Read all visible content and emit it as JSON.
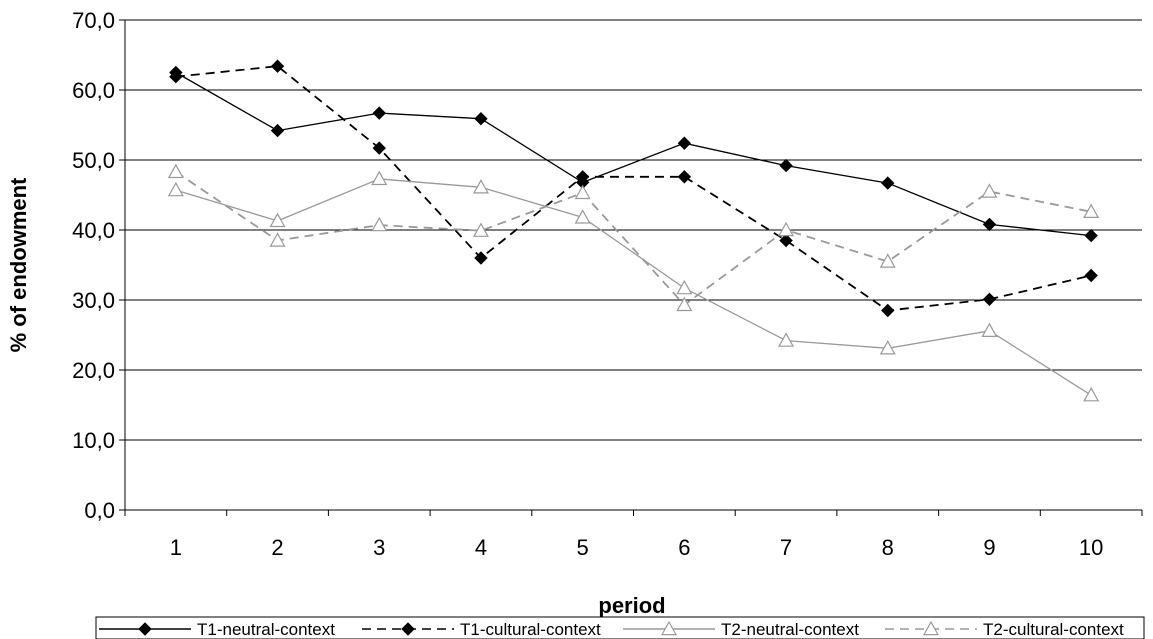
{
  "chart_data": {
    "type": "line",
    "xlabel": "period",
    "ylabel": "% of endowment",
    "ylim": [
      0,
      70
    ],
    "y_ticks": [
      "0,0",
      "10,0",
      "20,0",
      "30,0",
      "40,0",
      "50,0",
      "60,0",
      "70,0"
    ],
    "categories": [
      "1",
      "2",
      "3",
      "4",
      "5",
      "6",
      "7",
      "8",
      "9",
      "10"
    ],
    "grid": "horizontal",
    "legend_position": "bottom",
    "series": [
      {
        "name": "T1-neutral-context",
        "color": "#000000",
        "dash": "solid",
        "marker": "diamond-filled",
        "values": [
          62.5,
          54.2,
          56.7,
          55.9,
          46.8,
          52.4,
          49.2,
          46.7,
          40.8,
          39.2
        ]
      },
      {
        "name": "T1-cultural-context",
        "color": "#000000",
        "dash": "dashed",
        "marker": "diamond-filled",
        "values": [
          61.9,
          63.4,
          51.7,
          36.0,
          47.6,
          47.6,
          38.5,
          28.5,
          30.1,
          33.5
        ]
      },
      {
        "name": "T2-neutral-context",
        "color": "#999999",
        "dash": "solid",
        "marker": "triangle-open",
        "values": [
          45.7,
          41.3,
          47.3,
          46.1,
          41.8,
          31.7,
          24.2,
          23.1,
          25.6,
          16.4
        ]
      },
      {
        "name": "T2-cultural-context",
        "color": "#999999",
        "dash": "dashed",
        "marker": "triangle-open",
        "values": [
          48.3,
          38.5,
          40.7,
          39.9,
          45.3,
          29.3,
          40.0,
          35.5,
          45.5,
          42.6
        ]
      }
    ]
  }
}
